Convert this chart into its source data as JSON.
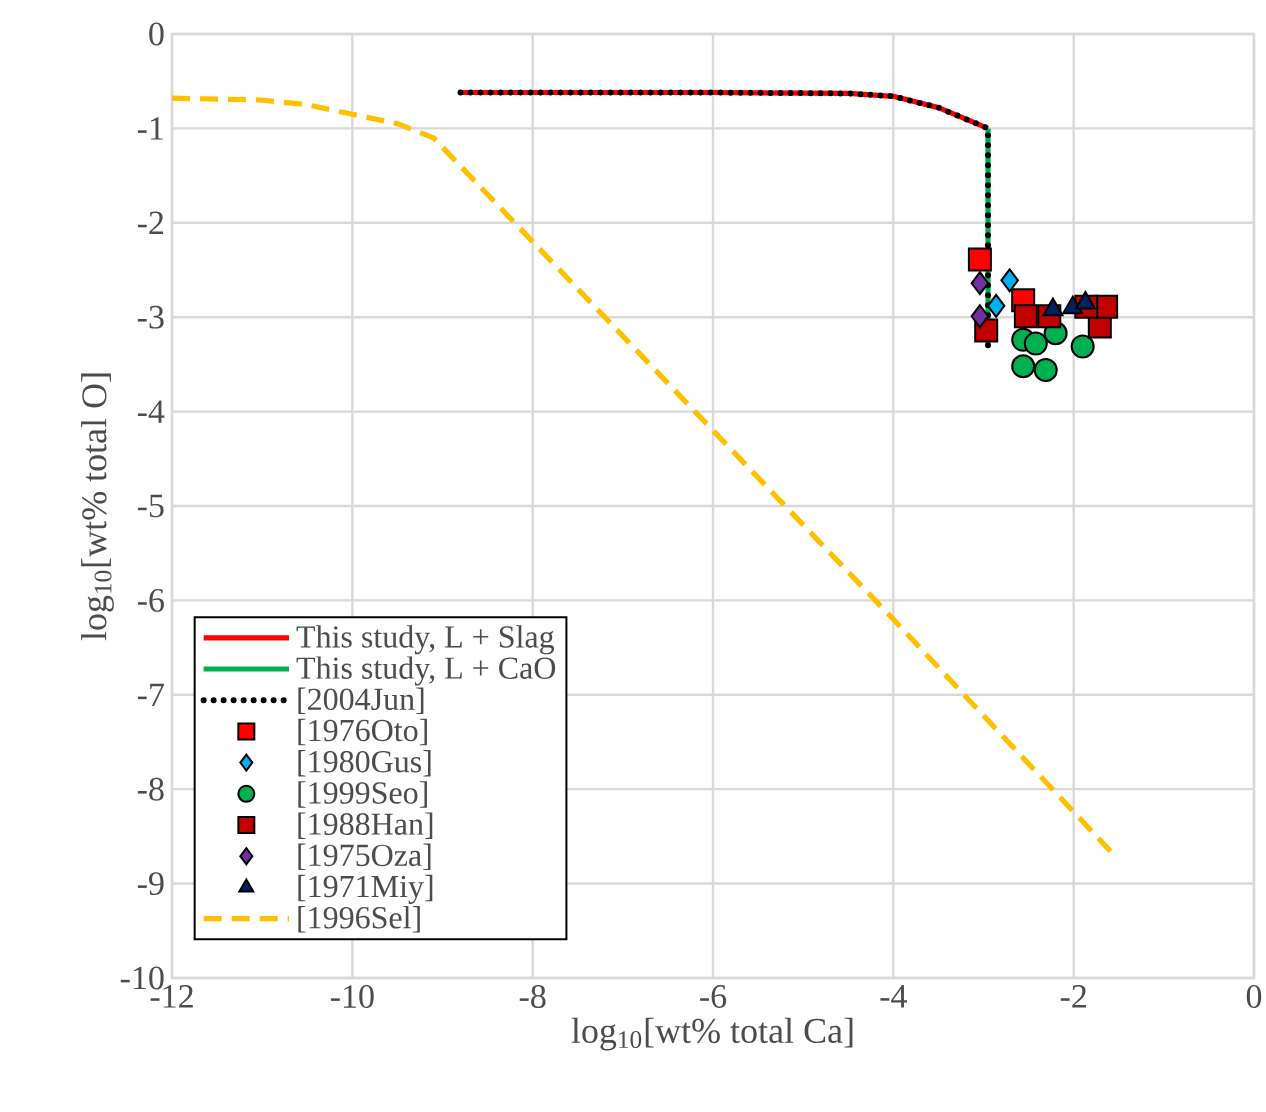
{
  "chart_data": {
    "type": "line",
    "xlabel": "log$_{10}$[wt% total Ca]",
    "ylabel": "log$_{10}$[wt% total O]",
    "xlim": [
      -12,
      0
    ],
    "xticks": [
      -12,
      -10,
      -8,
      -6,
      -4,
      -2,
      0
    ],
    "ylim": [
      -10,
      0
    ],
    "yticks": [
      -10,
      -9,
      -8,
      -7,
      -6,
      -5,
      -4,
      -3,
      -2,
      -1,
      0
    ],
    "grid": true,
    "legend": "bottom left",
    "series": [
      {
        "name": "This study, L + Slag",
        "color": "#ff0000",
        "line_style": "solid",
        "x": [
          -8.8,
          -6,
          -4.5,
          -4,
          -3.5,
          -3.2,
          -2.95
        ],
        "values": [
          -0.62,
          -0.62,
          -0.63,
          -0.66,
          -0.78,
          -0.9,
          -1.0
        ]
      },
      {
        "name": "This study, L + CaO",
        "color": "#00b050",
        "line_style": "solid",
        "x": [
          -2.95,
          -2.95
        ],
        "values": [
          -1.0,
          -3.3
        ]
      },
      {
        "name": "[2004Jun]",
        "color": "#000000",
        "line_style": "dotted",
        "x": [
          -8.8,
          -6,
          -4.5,
          -4,
          -3.5,
          -3.2,
          -2.95,
          -2.95
        ],
        "values": [
          -0.62,
          -0.62,
          -0.63,
          -0.66,
          -0.78,
          -0.9,
          -1.0,
          -3.3
        ]
      },
      {
        "name": "[1976Oto]",
        "type": "scatter",
        "color": "#ff0000",
        "marker": "square",
        "x": [
          -3.04,
          -2.56
        ],
        "values": [
          -2.39,
          -2.82
        ]
      },
      {
        "name": "[1980Gus]",
        "type": "scatter",
        "color": "#00b0f0",
        "marker": "diamond",
        "x": [
          -2.71,
          -2.86
        ],
        "values": [
          -2.61,
          -2.88
        ]
      },
      {
        "name": "[1999Seo]",
        "type": "scatter",
        "color": "#00b050",
        "marker": "circle",
        "x": [
          -2.56,
          -2.31,
          -2.56,
          -2.42,
          -2.2,
          -1.9
        ],
        "values": [
          -3.52,
          -3.56,
          -3.24,
          -3.28,
          -3.17,
          -3.31
        ]
      },
      {
        "name": "[1988Han]",
        "type": "scatter",
        "color": "#c00000",
        "marker": "square",
        "x": [
          -2.97,
          -2.53,
          -2.27,
          -1.71,
          -1.64,
          -1.86
        ],
        "values": [
          -3.14,
          -2.99,
          -2.99,
          -3.1,
          -2.89,
          -2.89
        ]
      },
      {
        "name": "[1975Oza]",
        "type": "scatter",
        "color": "#7030a0",
        "marker": "diamond",
        "x": [
          -3.04,
          -3.04
        ],
        "values": [
          -2.64,
          -2.99
        ]
      },
      {
        "name": "[1971Miy]",
        "type": "scatter",
        "color": "#002060",
        "marker": "triangle",
        "x": [
          -2.23,
          -2.01,
          -1.87
        ],
        "values": [
          -2.92,
          -2.9,
          -2.85
        ]
      },
      {
        "name": "[1996Sel]",
        "color": "#ffc000",
        "line_style": "dashed",
        "x": [
          -12,
          -11,
          -10.5,
          -10,
          -9.5,
          -9.1,
          -8,
          -6,
          -4,
          -1.55
        ],
        "values": [
          -0.68,
          -0.7,
          -0.75,
          -0.85,
          -0.95,
          -1.1,
          -2.2,
          -4.2,
          -6.2,
          -8.7
        ]
      }
    ]
  }
}
